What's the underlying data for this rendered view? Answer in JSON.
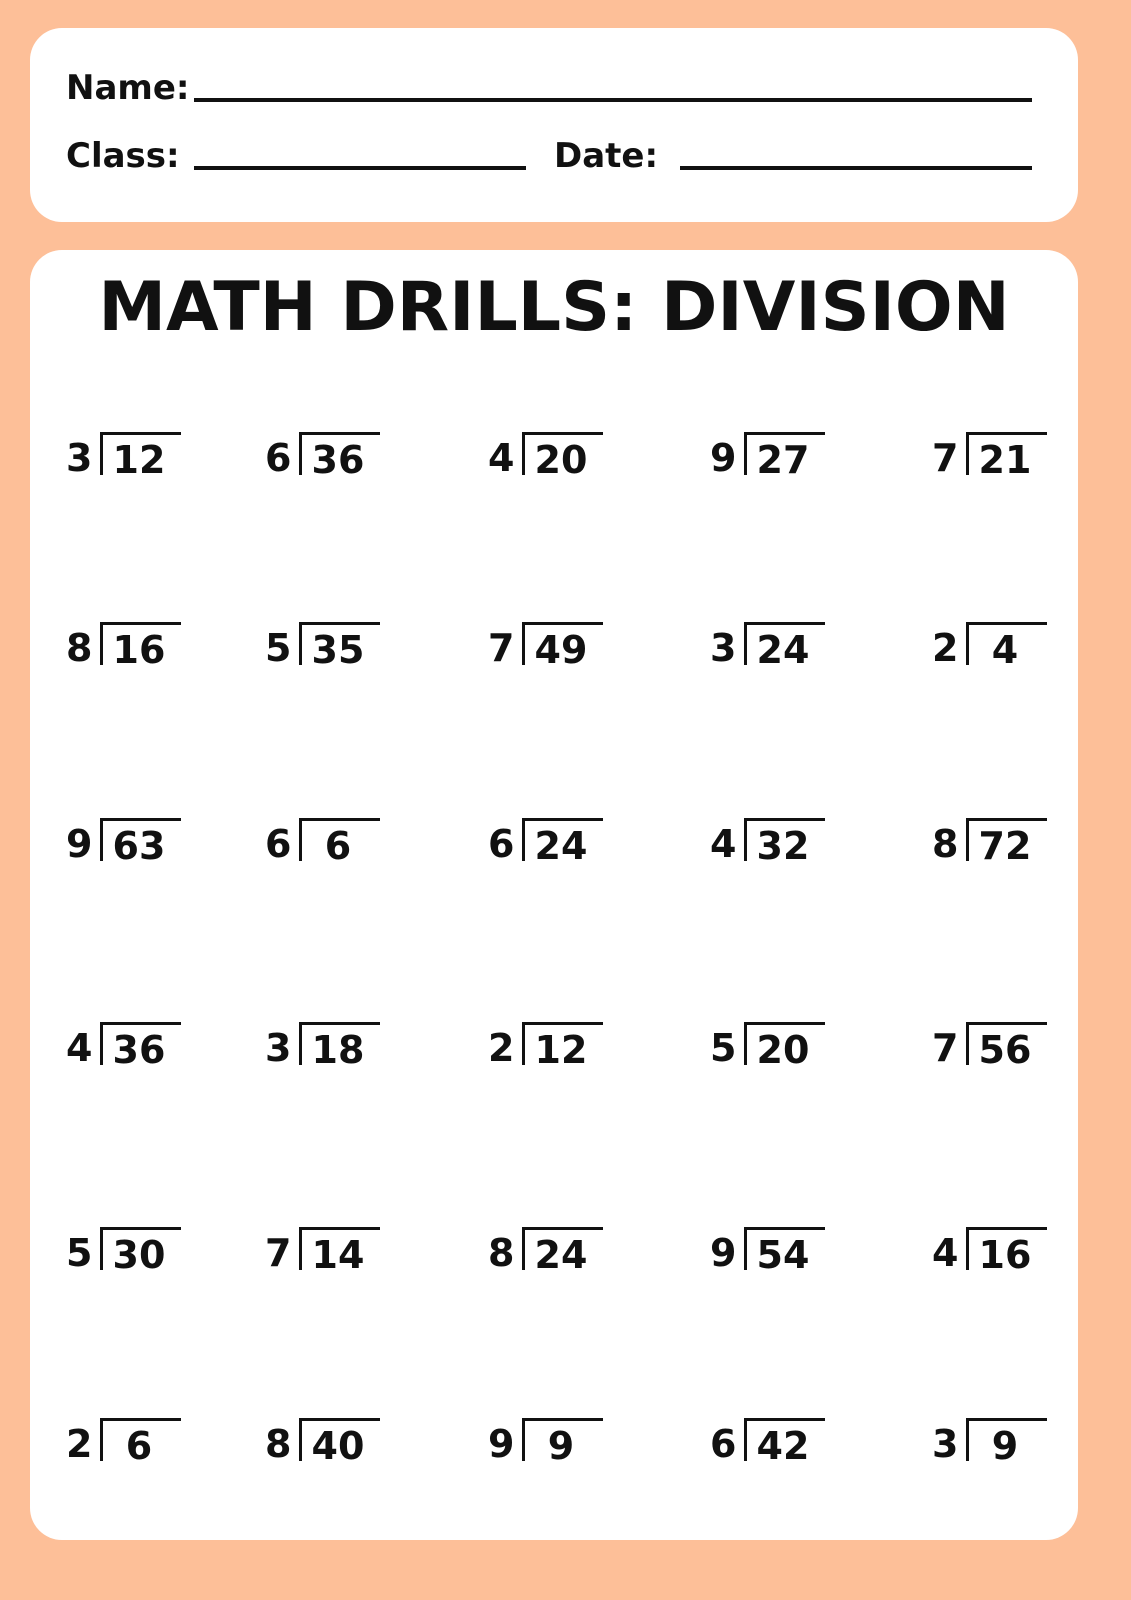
{
  "header": {
    "name_label": "Name:",
    "class_label": "Class:",
    "date_label": "Date:"
  },
  "title": "MATH DRILLS: DIVISION",
  "colors": {
    "background": "#fdbf98",
    "card": "#ffffff",
    "text": "#111111"
  },
  "problems": [
    [
      {
        "divisor": "3",
        "dividend": "12"
      },
      {
        "divisor": "6",
        "dividend": "36"
      },
      {
        "divisor": "4",
        "dividend": "20"
      },
      {
        "divisor": "9",
        "dividend": "27"
      },
      {
        "divisor": "7",
        "dividend": "21"
      }
    ],
    [
      {
        "divisor": "8",
        "dividend": "16"
      },
      {
        "divisor": "5",
        "dividend": "35"
      },
      {
        "divisor": "7",
        "dividend": "49"
      },
      {
        "divisor": "3",
        "dividend": "24"
      },
      {
        "divisor": "2",
        "dividend": "4"
      }
    ],
    [
      {
        "divisor": "9",
        "dividend": "63"
      },
      {
        "divisor": "6",
        "dividend": "6"
      },
      {
        "divisor": "6",
        "dividend": "24"
      },
      {
        "divisor": "4",
        "dividend": "32"
      },
      {
        "divisor": "8",
        "dividend": "72"
      }
    ],
    [
      {
        "divisor": "4",
        "dividend": "36"
      },
      {
        "divisor": "3",
        "dividend": "18"
      },
      {
        "divisor": "2",
        "dividend": "12"
      },
      {
        "divisor": "5",
        "dividend": "20"
      },
      {
        "divisor": "7",
        "dividend": "56"
      }
    ],
    [
      {
        "divisor": "5",
        "dividend": "30"
      },
      {
        "divisor": "7",
        "dividend": "14"
      },
      {
        "divisor": "8",
        "dividend": "24"
      },
      {
        "divisor": "9",
        "dividend": "54"
      },
      {
        "divisor": "4",
        "dividend": "16"
      }
    ],
    [
      {
        "divisor": "2",
        "dividend": "6"
      },
      {
        "divisor": "8",
        "dividend": "40"
      },
      {
        "divisor": "9",
        "dividend": "9"
      },
      {
        "divisor": "6",
        "dividend": "42"
      },
      {
        "divisor": "3",
        "dividend": "9"
      }
    ]
  ]
}
